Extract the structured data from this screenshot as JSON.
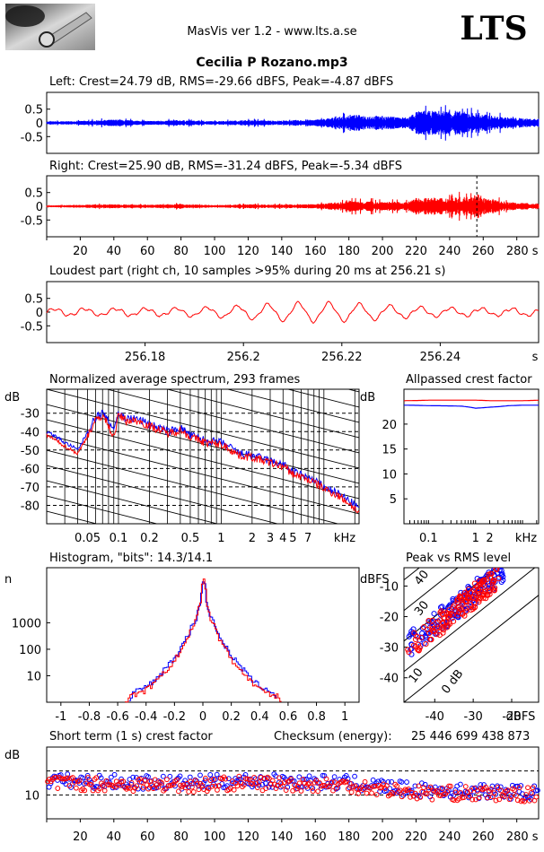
{
  "header": {
    "app_title": "MasVis ver 1.2 - www.lts.a.se",
    "logo": "LTS",
    "file_title": "Cecilia P Rozano.mp3"
  },
  "colors": {
    "left": "#0000ff",
    "right": "#ff0000"
  },
  "chart_data": [
    {
      "id": "left-waveform",
      "type": "line",
      "title": "Left: Crest=24.79 dB, RMS=-29.66 dBFS, Peak=-4.87 dBFS",
      "ylim": [
        -1,
        1
      ],
      "ytick_labels": [
        "0.5",
        "0",
        "-0.5"
      ],
      "xlim": [
        0,
        293
      ],
      "series": [
        {
          "color": "#0000ff",
          "envelope_x": [
            0,
            20,
            40,
            60,
            80,
            100,
            120,
            140,
            160,
            175,
            180,
            200,
            215,
            220,
            240,
            255,
            260,
            275,
            290
          ],
          "envelope_amp": [
            0.05,
            0.07,
            0.12,
            0.07,
            0.1,
            0.06,
            0.1,
            0.08,
            0.12,
            0.22,
            0.3,
            0.25,
            0.2,
            0.42,
            0.45,
            0.38,
            0.3,
            0.2,
            0.15
          ]
        }
      ]
    },
    {
      "id": "right-waveform",
      "type": "line",
      "title": "Right: Crest=25.90 dB, RMS=-31.24 dBFS, Peak=-5.34 dBFS",
      "ylim": [
        -1,
        1
      ],
      "ytick_labels": [
        "0.5",
        "0",
        "-0.5"
      ],
      "xlim": [
        0,
        293
      ],
      "xticks": [
        20,
        40,
        60,
        80,
        100,
        120,
        140,
        160,
        180,
        200,
        220,
        240,
        260,
        280
      ],
      "xtick_labels": [
        "20",
        "40",
        "60",
        "80",
        "100",
        "120",
        "140",
        "160",
        "180",
        "200",
        "220",
        "240",
        "260",
        "280 s"
      ],
      "marker_line": 256.21,
      "series": [
        {
          "color": "#ff0000",
          "envelope_x": [
            0,
            20,
            40,
            60,
            80,
            100,
            120,
            140,
            160,
            175,
            180,
            200,
            215,
            220,
            240,
            250,
            256,
            262,
            275,
            290
          ],
          "envelope_amp": [
            0.03,
            0.05,
            0.08,
            0.05,
            0.08,
            0.04,
            0.07,
            0.06,
            0.08,
            0.15,
            0.2,
            0.18,
            0.15,
            0.3,
            0.32,
            0.35,
            0.5,
            0.28,
            0.15,
            0.1
          ]
        }
      ]
    },
    {
      "id": "loudest-part",
      "type": "line",
      "title": "Loudest part (right ch, 10 samples >95% during 20 ms at 256.21 s)",
      "ylim": [
        -1,
        1
      ],
      "ytick_labels": [
        "0.5",
        "0",
        "-0.5"
      ],
      "xlim": [
        256.16,
        256.26
      ],
      "xticks": [
        256.18,
        256.2,
        256.22,
        256.24
      ],
      "xtick_labels": [
        "256.18",
        "256.2",
        "256.22",
        "256.24",
        "s"
      ],
      "series": [
        {
          "color": "#ff0000"
        }
      ]
    },
    {
      "id": "average-spectrum",
      "type": "line",
      "title": "Normalized average spectrum, 293 frames",
      "ylabel": "dB",
      "ytick_labels": [
        "-30",
        "-40",
        "-50",
        "-60",
        "-70",
        "-80"
      ],
      "yticks": [
        -30,
        -40,
        -50,
        -60,
        -70,
        -80
      ],
      "ylim": [
        -90,
        -17
      ],
      "xscale": "log",
      "xlim": [
        0.02,
        22
      ],
      "xticks": [
        0.05,
        0.1,
        0.2,
        0.5,
        1,
        2,
        3,
        4,
        5,
        7
      ],
      "xtick_labels": [
        "0.05",
        "0.1",
        "0.2",
        "0.5",
        "1",
        "2",
        "3",
        "4",
        "5",
        "7",
        "kHz"
      ],
      "series": [
        {
          "color": "#0000ff",
          "x": [
            0.02,
            0.03,
            0.04,
            0.05,
            0.06,
            0.07,
            0.08,
            0.09,
            0.1,
            0.12,
            0.15,
            0.2,
            0.3,
            0.4,
            0.5,
            0.7,
            1,
            1.5,
            2,
            3,
            4,
            5,
            7,
            10,
            15,
            22
          ],
          "y": [
            -40,
            -46,
            -50,
            -40,
            -32,
            -30,
            -35,
            -38,
            -30,
            -33,
            -33,
            -36,
            -40,
            -38,
            -42,
            -45,
            -46,
            -52,
            -53,
            -56,
            -58,
            -62,
            -65,
            -70,
            -75,
            -82
          ]
        },
        {
          "color": "#ff0000",
          "x": [
            0.02,
            0.03,
            0.04,
            0.05,
            0.06,
            0.07,
            0.08,
            0.09,
            0.1,
            0.12,
            0.15,
            0.2,
            0.3,
            0.4,
            0.5,
            0.7,
            1,
            1.5,
            2,
            3,
            4,
            5,
            7,
            10,
            15,
            22
          ],
          "y": [
            -42,
            -48,
            -52,
            -42,
            -34,
            -31,
            -37,
            -43,
            -31,
            -34,
            -34,
            -37,
            -41,
            -39,
            -43,
            -46,
            -47,
            -53,
            -54,
            -57,
            -59,
            -63,
            -66,
            -71,
            -76,
            -84
          ]
        }
      ]
    },
    {
      "id": "allpassed-crest",
      "type": "line",
      "title": "Allpassed crest factor",
      "ylabel": "dB",
      "yticks": [
        20,
        15,
        10,
        5
      ],
      "ytick_labels": [
        "20",
        "15",
        "10",
        "5"
      ],
      "ylim": [
        0,
        27
      ],
      "xscale": "log",
      "xlim": [
        0.03,
        22
      ],
      "xticks": [
        0.1,
        1,
        2
      ],
      "xtick_labels": [
        "0.1",
        "1",
        "2",
        "kHz"
      ],
      "series": [
        {
          "color": "#ff0000",
          "x": [
            0.03,
            0.1,
            0.5,
            1,
            2,
            5,
            10,
            22
          ],
          "y": [
            24.7,
            24.8,
            24.8,
            24.8,
            24.7,
            24.7,
            24.7,
            24.8
          ]
        },
        {
          "color": "#0000ff",
          "x": [
            0.03,
            0.1,
            0.5,
            1,
            2,
            5,
            10,
            22
          ],
          "y": [
            23.8,
            23.7,
            23.6,
            23.2,
            23.4,
            23.7,
            23.8,
            23.8
          ]
        }
      ]
    },
    {
      "id": "histogram",
      "type": "line",
      "title": "Histogram, \"bits\": 14.3/14.1",
      "ylabel": "n",
      "yscale": "log",
      "yticks": [
        1000,
        100,
        10
      ],
      "ytick_labels": [
        "1000",
        "100",
        "10"
      ],
      "xlim": [
        -1.1,
        1.1
      ],
      "xticks": [
        -1,
        -0.8,
        -0.6,
        -0.4,
        -0.2,
        0,
        0.2,
        0.4,
        0.6,
        0.8,
        1
      ],
      "xtick_labels": [
        "-1",
        "-0.8",
        "-0.6",
        "-0.4",
        "-0.2",
        "0",
        "0.2",
        "0.4",
        "0.6",
        "0.8",
        "1"
      ],
      "series": [
        {
          "color": "#0000ff",
          "x_abs": [
            0,
            0.02,
            0.05,
            0.1,
            0.15,
            0.2,
            0.25,
            0.3,
            0.35,
            0.4,
            0.45,
            0.5,
            0.52
          ],
          "n": [
            50000,
            5000,
            1500,
            400,
            130,
            50,
            25,
            12,
            6,
            4,
            3,
            2,
            1
          ]
        },
        {
          "color": "#ff0000",
          "x_abs": [
            0,
            0.02,
            0.05,
            0.1,
            0.15,
            0.2,
            0.25,
            0.3,
            0.35,
            0.4,
            0.45,
            0.5,
            0.55
          ],
          "n": [
            52000,
            5200,
            1300,
            320,
            100,
            38,
            18,
            9,
            5,
            3,
            2,
            2,
            1
          ]
        }
      ]
    },
    {
      "id": "peak-vs-rms",
      "type": "scatter",
      "title": "Peak vs RMS level",
      "ylabel": "dBFS",
      "xlabel": "dBFS",
      "xlim": [
        -48,
        -13
      ],
      "ylim": [
        -48,
        -4
      ],
      "xticks": [
        -40,
        -30,
        -20
      ],
      "xtick_labels": [
        "-40",
        "-30",
        "-20",
        "dBFS"
      ],
      "yticks": [
        -10,
        -20,
        -30,
        -40
      ],
      "ytick_labels": [
        "-10",
        "-20",
        "-30",
        "-40"
      ],
      "diagonal_labels": [
        "40",
        "30",
        "10",
        "0 dB"
      ],
      "series": [
        {
          "color": "#0000ff",
          "rms_range": [
            -47,
            -22
          ],
          "crest_mean": 17.5,
          "count": 150
        },
        {
          "color": "#ff0000",
          "rms_range": [
            -47,
            -23
          ],
          "crest_mean": 16.5,
          "count": 150
        }
      ]
    },
    {
      "id": "short-term-crest",
      "type": "scatter",
      "title": "Short term (1 s) crest factor",
      "ylabel": "dB",
      "yticks": [
        10
      ],
      "ytick_labels": [
        "10"
      ],
      "ylim": [
        0,
        30
      ],
      "dashed_levels": [
        10,
        20
      ],
      "xlim": [
        0,
        293
      ],
      "xticks": [
        20,
        40,
        60,
        80,
        100,
        120,
        140,
        160,
        180,
        200,
        220,
        240,
        260,
        280
      ],
      "xtick_labels": [
        "20",
        "40",
        "60",
        "80",
        "100",
        "120",
        "140",
        "160",
        "180",
        "200",
        "220",
        "240",
        "260",
        "280 s"
      ],
      "series": [
        {
          "color": "#0000ff",
          "mean_x": [
            0,
            80,
            120,
            180,
            220,
            293
          ],
          "mean_y": [
            16,
            15,
            16,
            15,
            12,
            11
          ]
        },
        {
          "color": "#ff0000",
          "mean_x": [
            0,
            80,
            120,
            180,
            220,
            293
          ],
          "mean_y": [
            15,
            14,
            15,
            14,
            11,
            10
          ]
        }
      ]
    }
  ],
  "checksum": {
    "label": "Checksum (energy):",
    "value": "25 446 699 438 873"
  }
}
